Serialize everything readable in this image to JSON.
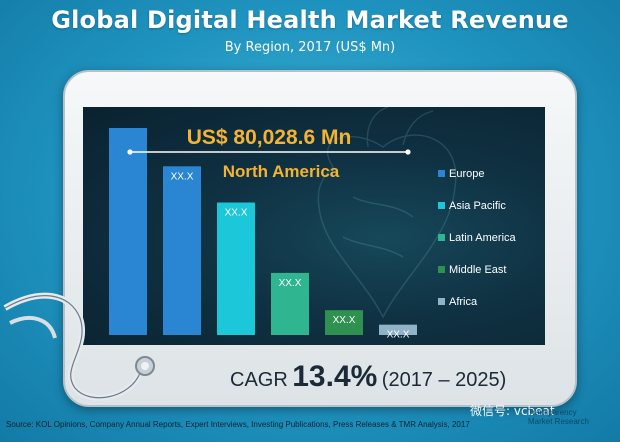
{
  "header": {
    "title": "Global Digital Health Market Revenue",
    "subtitle": "By Region, 2017 (US$ Mn)"
  },
  "callout": {
    "value": "US$ 80,028.6 Mn",
    "region": "North America"
  },
  "chart_data": {
    "type": "bar",
    "categories": [
      "North America",
      "Europe",
      "Asia Pacific",
      "Latin America",
      "Middle East",
      "Africa"
    ],
    "values": [
      80028.6,
      null,
      null,
      null,
      null,
      null
    ],
    "relative_heights": [
      1.0,
      0.815,
      0.64,
      0.3,
      0.12,
      0.05
    ],
    "data_labels": [
      "",
      "XX.X",
      "XX.X",
      "XX.X",
      "XX.X",
      "XX.X"
    ],
    "colors": [
      "#2a86d3",
      "#2a86d3",
      "#1cc7d9",
      "#2fb58f",
      "#2e9150",
      "#8fb4c8"
    ],
    "legend": [
      {
        "label": "Europe",
        "color": "#2a86d3"
      },
      {
        "label": "Asia Pacific",
        "color": "#1cc7d9"
      },
      {
        "label": "Latin America",
        "color": "#2fb58f"
      },
      {
        "label": "Middle East",
        "color": "#2e9150"
      },
      {
        "label": "Africa",
        "color": "#8fb4c8"
      }
    ],
    "legend_position": "right"
  },
  "cagr": {
    "label": "CAGR",
    "value": "13.4%",
    "range": "(2017 – 2025)"
  },
  "footer": {
    "source": "Source: KOL Opinions, Company Annual Reports, Expert Interviews, Investing Publications, Press Releases & TMR Analysis, 2017",
    "watermark": "微信号: vcbeat",
    "logo_line1": "Transparency",
    "logo_line2": "Market Research"
  }
}
